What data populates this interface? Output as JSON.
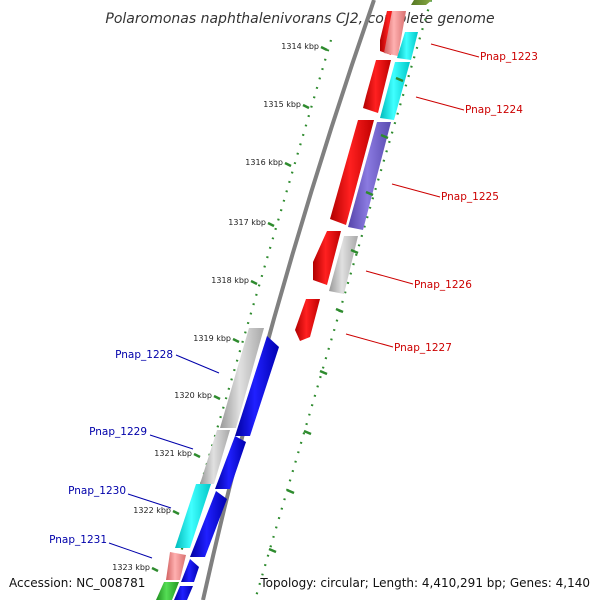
{
  "title": "Polaromonas naphthalenivorans CJ2, complete genome",
  "footer": {
    "accession": "Accession: NC_008781",
    "topology": "Topology: circular; Length: 4,410,291 bp; Genes: 4,140"
  },
  "kbp_ticks": [
    {
      "label": "1314 kbp",
      "kbp": 1314
    },
    {
      "label": "1315 kbp",
      "kbp": 1315
    },
    {
      "label": "1316 kbp",
      "kbp": 1316
    },
    {
      "label": "1317 kbp",
      "kbp": 1317
    },
    {
      "label": "1318 kbp",
      "kbp": 1318
    },
    {
      "label": "1319 kbp",
      "kbp": 1319
    },
    {
      "label": "1320 kbp",
      "kbp": 1320
    },
    {
      "label": "1321 kbp",
      "kbp": 1321
    },
    {
      "label": "1322 kbp",
      "kbp": 1322
    },
    {
      "label": "1323 kbp",
      "kbp": 1323
    }
  ],
  "genes_right": [
    {
      "label": "Pnap_1223",
      "color": "#cc0000"
    },
    {
      "label": "Pnap_1224",
      "color": "#cc0000"
    },
    {
      "label": "Pnap_1225",
      "color": "#cc0000"
    },
    {
      "label": "Pnap_1226",
      "color": "#cc0000"
    },
    {
      "label": "Pnap_1227",
      "color": "#cc0000"
    }
  ],
  "genes_left": [
    {
      "label": "Pnap_1228",
      "color": "#0000aa"
    },
    {
      "label": "Pnap_1229",
      "color": "#0000aa"
    },
    {
      "label": "Pnap_1230",
      "color": "#0000aa"
    },
    {
      "label": "Pnap_1231",
      "color": "#0000aa"
    }
  ],
  "colors": {
    "forward_strand": "#ee0000",
    "reverse_strand": "#0000ee",
    "category_cyan": "#00eeee",
    "category_grey": "#c0c0c0",
    "category_purple": "#7766cc",
    "category_pink": "#f09090",
    "category_green": "#33bb33",
    "tick_green": "#2e8b2e",
    "backbone": "#777777"
  }
}
